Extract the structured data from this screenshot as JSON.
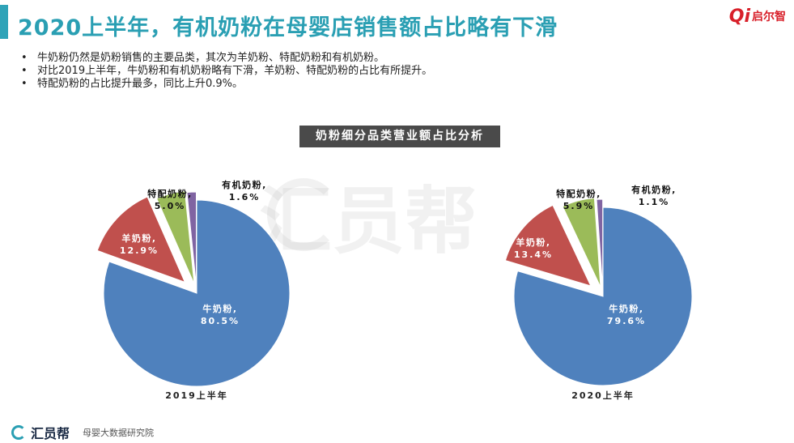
{
  "header": {
    "title": "2020上半年，有机奶粉在母婴店销售额占比略有下滑",
    "brand_mark": "Qi",
    "brand_name": "启尔智"
  },
  "bullets": [
    "牛奶粉仍然是奶粉销售的主要品类，其次为羊奶粉、特配奶粉和有机奶粉。",
    "对比2019上半年，牛奶粉和有机奶粉略有下滑，羊奶粉、特配奶粉的占比有所提升。",
    "特配奶粉的占比提升最多，同比上升0.9%。"
  ],
  "footer": {
    "brand": "汇员帮",
    "sub": "母婴大数据研究院"
  },
  "watermark": "汇员帮",
  "colors": {
    "accent": "#2fa3b8",
    "cow": "#4f81bd",
    "goat": "#c0504d",
    "special": "#9bbb59",
    "organic": "#8064a2"
  },
  "chart_data": {
    "type": "pie",
    "title": "奶粉细分品类营业额占比分析",
    "categories": [
      "牛奶粉",
      "羊奶粉",
      "特配奶粉",
      "有机奶粉"
    ],
    "series": [
      {
        "name": "2019上半年",
        "values": [
          80.5,
          12.9,
          5.0,
          1.6
        ]
      },
      {
        "name": "2020上半年",
        "values": [
          79.6,
          13.4,
          5.9,
          1.1
        ]
      }
    ],
    "value_labels": [
      [
        "80.5%",
        "12.9%",
        "5.0%",
        "1.6%"
      ],
      [
        "79.6%",
        "13.4%",
        "5.9%",
        "1.1%"
      ]
    ],
    "category_labels": [
      "牛奶粉,",
      "羊奶粉,",
      "特配奶粉,",
      "有机奶粉,"
    ]
  }
}
